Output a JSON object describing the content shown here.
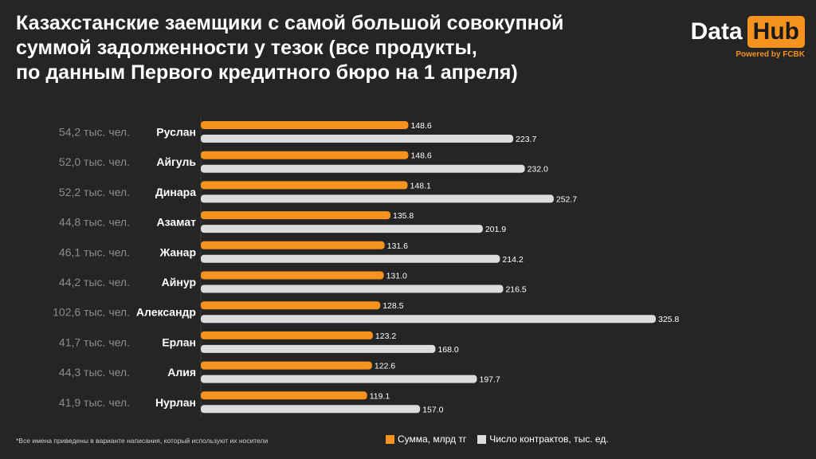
{
  "title_lines": [
    "Казахстанские заемщики с самой большой совокупной",
    "суммой задолженности у тезок (все продукты,",
    "по данным Первого кредитного бюро на 1 апреля)"
  ],
  "logo": {
    "data": "Data",
    "hub": "Hub",
    "powered": "Powered by FCBK"
  },
  "footnote": "*Все имена приведены в варианте написания, который используют их носители",
  "colors": {
    "background": "#252525",
    "orange": "#f5931e",
    "gray": "#dcdcdc",
    "count_label": "#8c8c8c"
  },
  "chart_data": {
    "type": "bar",
    "orientation": "horizontal",
    "categories": [
      "Руслан",
      "Айгуль",
      "Динара",
      "Азамат",
      "Жанар",
      "Айнур",
      "Александр",
      "Ерлан",
      "Алия",
      "Нурлан"
    ],
    "people_counts": [
      "54,2 тыс. чел.",
      "52,0 тыс. чел.",
      "52,2 тыс. чел.",
      "44,8 тыс. чел.",
      "46,1 тыс. чел.",
      "44,2 тыс. чел.",
      "102,6 тыс. чел.",
      "41,7 тыс. чел.",
      "44,3 тыс. чел.",
      "41,9 тыс. чел."
    ],
    "series": [
      {
        "name": "Сумма, млрд тг",
        "color": "#f5931e",
        "values": [
          148.6,
          148.6,
          148.1,
          135.8,
          131.6,
          131.0,
          128.5,
          123.2,
          122.6,
          119.1
        ],
        "labels": [
          "148.6",
          "148.6",
          "148.1",
          "135.8",
          "131.6",
          "131.0",
          "128.5",
          "123.2",
          "122.6",
          "119.1"
        ]
      },
      {
        "name": "Число контрактов, тыс. ед.",
        "color": "#dcdcdc",
        "values": [
          223.7,
          232.0,
          252.7,
          201.9,
          214.2,
          216.5,
          325.8,
          168.0,
          197.7,
          157.0
        ],
        "labels": [
          "223.7",
          "232.0",
          "252.7",
          "201.9",
          "214.2",
          "216.5",
          "325.8",
          "168.0",
          "197.7",
          "157.0"
        ]
      }
    ],
    "xlim": [
      0,
      325.8
    ],
    "grid": false,
    "legend": "bottom"
  }
}
